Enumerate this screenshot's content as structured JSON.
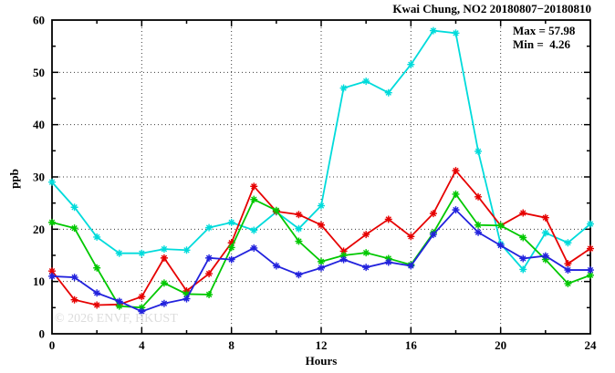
{
  "title": "Kwai Chung, NO2 20180807−20180810",
  "annotation": {
    "max_label": "Max = 57.98",
    "min_label": "Min =  4.26"
  },
  "watermark": "© 2026 ENVF, HKUST",
  "axes": {
    "xlabel": "Hours",
    "ylabel": "ppb"
  },
  "chart_data": {
    "type": "line",
    "title": "Kwai Chung, NO2 20180807−20180810",
    "xlabel": "Hours",
    "ylabel": "ppb",
    "xlim": [
      0,
      24
    ],
    "ylim": [
      0,
      60
    ],
    "x_major_ticks": [
      0,
      4,
      8,
      12,
      16,
      20,
      24
    ],
    "x_minor_step": 2,
    "y_major_ticks": [
      0,
      10,
      20,
      30,
      40,
      50,
      60
    ],
    "y_minor_step": 5,
    "grid": "dotted at major ticks, mirrored inward ticks on all borders",
    "legend_position": "none",
    "max": 57.98,
    "min": 4.26,
    "x": [
      0,
      1,
      2,
      3,
      4,
      5,
      6,
      7,
      8,
      9,
      10,
      11,
      12,
      13,
      14,
      15,
      16,
      17,
      18,
      19,
      20,
      21,
      22,
      23,
      24
    ],
    "series": [
      {
        "name": "cyan",
        "color": "#00DBDB",
        "values": [
          29.0,
          24.2,
          18.5,
          15.4,
          15.4,
          16.2,
          16.0,
          20.3,
          21.3,
          19.8,
          23.3,
          20.1,
          24.5,
          47.0,
          48.3,
          46.1,
          51.5,
          57.98,
          57.5,
          34.9,
          17.2,
          12.3,
          19.3,
          17.4,
          21.0
        ]
      },
      {
        "name": "red",
        "color": "#E60000",
        "values": [
          12.0,
          6.5,
          5.5,
          5.6,
          7.1,
          14.5,
          8.2,
          11.5,
          17.4,
          28.2,
          23.4,
          22.8,
          20.8,
          15.8,
          19.0,
          21.9,
          18.6,
          23.0,
          31.2,
          26.2,
          20.7,
          23.1,
          22.2,
          13.4,
          16.3
        ]
      },
      {
        "name": "green",
        "color": "#00C800",
        "values": [
          21.3,
          20.2,
          12.6,
          5.3,
          5.0,
          9.7,
          7.6,
          7.5,
          16.5,
          25.7,
          23.6,
          17.7,
          13.8,
          15.0,
          15.5,
          14.4,
          13.2,
          19.3,
          26.7,
          20.8,
          20.7,
          18.4,
          14.2,
          9.6,
          11.2
        ]
      },
      {
        "name": "blue",
        "color": "#2222DD",
        "values": [
          11.0,
          10.8,
          7.8,
          6.2,
          4.26,
          5.8,
          6.7,
          14.5,
          14.2,
          16.4,
          13.0,
          11.3,
          12.6,
          14.2,
          12.7,
          13.7,
          13.0,
          19.0,
          23.7,
          19.4,
          16.9,
          14.4,
          14.9,
          12.2,
          12.2
        ]
      }
    ]
  }
}
